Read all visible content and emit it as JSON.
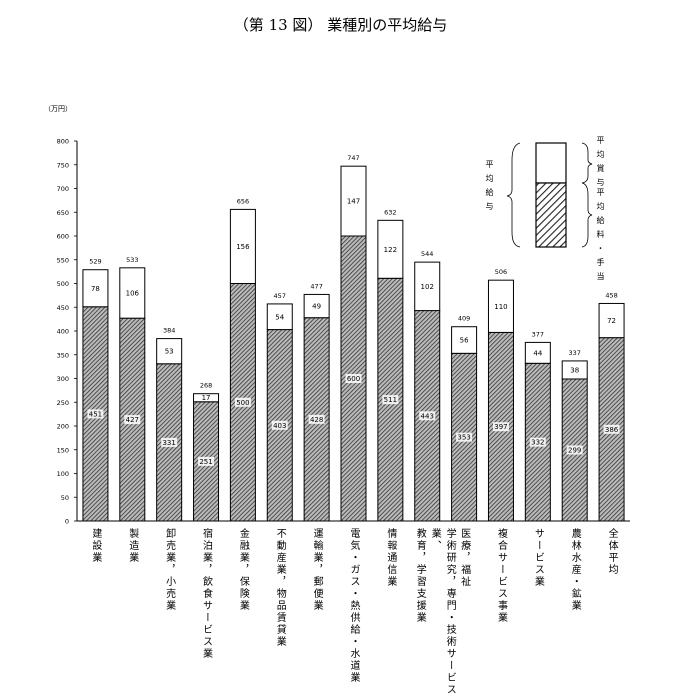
{
  "chart_data": {
    "type": "bar",
    "stacked": true,
    "title": "（第 13 図） 業種別の平均給与",
    "ylabel": "（万円）",
    "ylim": [
      0,
      800
    ],
    "yticks": [
      0,
      50,
      100,
      150,
      200,
      250,
      300,
      350,
      400,
      450,
      500,
      550,
      600,
      650,
      700,
      750,
      800
    ],
    "grid": false,
    "categories": [
      "建設業",
      "製造業",
      "卸売業，小売業",
      "宿泊業，飲食サービス業",
      "金融業，保険業",
      "不動産業，物品賃貸業",
      "運輸業，郵便業",
      "電気・ガス・熱供給・水道業",
      "情報通信業",
      "学術研究，専門・技術サービス業、\n教育，学習支援業",
      "医療，福祉",
      "複合サービス事業",
      "サービス業",
      "農林水産・鉱業",
      "全体平均"
    ],
    "series": [
      {
        "name": "平均給料・手当",
        "pattern": "hatched",
        "values": [
          451,
          427,
          331,
          251,
          500,
          403,
          428,
          600,
          511,
          443,
          353,
          397,
          332,
          299,
          386
        ]
      },
      {
        "name": "平均賞与",
        "pattern": "white",
        "values": [
          78,
          106,
          53,
          17,
          156,
          54,
          49,
          147,
          122,
          102,
          56,
          110,
          44,
          38,
          72
        ]
      }
    ],
    "totals": [
      529,
      533,
      384,
      268,
      656,
      457,
      477,
      747,
      632,
      544,
      409,
      506,
      377,
      337,
      458
    ],
    "total_label": "平均給与",
    "legend": "top-right"
  }
}
